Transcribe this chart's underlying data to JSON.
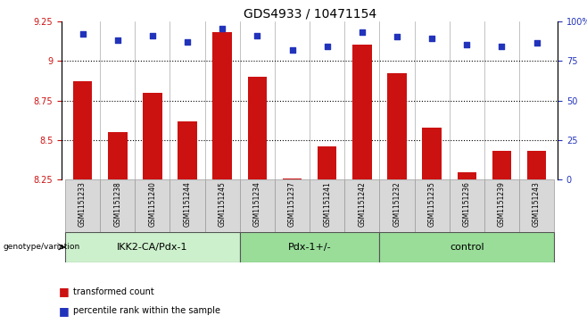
{
  "title": "GDS4933 / 10471154",
  "samples": [
    "GSM1151233",
    "GSM1151238",
    "GSM1151240",
    "GSM1151244",
    "GSM1151245",
    "GSM1151234",
    "GSM1151237",
    "GSM1151241",
    "GSM1151242",
    "GSM1151232",
    "GSM1151235",
    "GSM1151236",
    "GSM1151239",
    "GSM1151243"
  ],
  "bar_values": [
    8.87,
    8.55,
    8.8,
    8.62,
    9.18,
    8.9,
    8.26,
    8.46,
    9.1,
    8.92,
    8.58,
    8.3,
    8.43,
    8.43
  ],
  "percentile_values": [
    92,
    88,
    91,
    87,
    95,
    91,
    82,
    84,
    93,
    90,
    89,
    85,
    84,
    86
  ],
  "ylim_left": [
    8.25,
    9.25
  ],
  "ylim_right": [
    0,
    100
  ],
  "yticks_left": [
    8.25,
    8.5,
    8.75,
    9.0,
    9.25
  ],
  "yticks_right": [
    0,
    25,
    50,
    75,
    100
  ],
  "grid_values": [
    9.0,
    8.75,
    8.5
  ],
  "bar_color": "#cc1111",
  "dot_color": "#2233bb",
  "legend_bar_label": "transformed count",
  "legend_dot_label": "percentile rank within the sample",
  "genotype_label": "genotype/variation",
  "title_fontsize": 10,
  "tick_fontsize": 7,
  "sample_fontsize": 5.5,
  "group_fontsize": 8,
  "legend_fontsize": 7,
  "group_spans": [
    {
      "start": 0,
      "end": 4,
      "label": "IKK2-CA/Pdx-1",
      "color": "#ccf0cc"
    },
    {
      "start": 5,
      "end": 8,
      "label": "Pdx-1+/-",
      "color": "#99dd99"
    },
    {
      "start": 9,
      "end": 13,
      "label": "control",
      "color": "#99dd99"
    }
  ]
}
